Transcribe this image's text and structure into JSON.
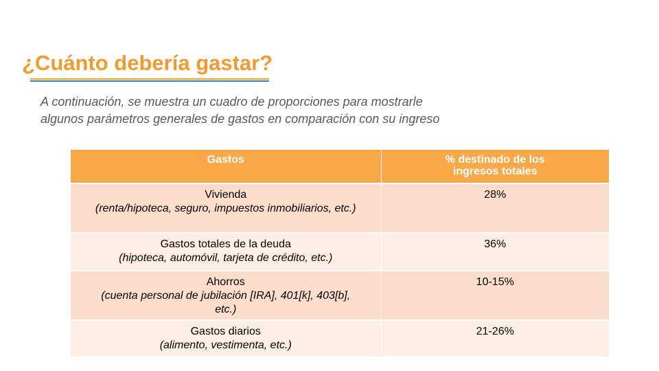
{
  "slide": {
    "title": "¿Cuánto debería gastar?",
    "subtitle_lines": [
      "A continuación, se muestra un cuadro de proporciones para mostrarle",
      "algunos parámetros generales de gastos en comparación con su ingreso"
    ],
    "colors": {
      "title": "#f29a2e",
      "header_fill": "#f8a848",
      "row_odd_fill": "#fcdccb",
      "row_even_fill": "#feeee6",
      "underline_orange": "#e8a33d",
      "underline_teal": "#2e8a9a"
    }
  },
  "table": {
    "headers": [
      "Gastos",
      "% destinado de los ingresos totales"
    ],
    "rows": [
      {
        "name": "Vivienda",
        "detail": "(renta/hipoteca, seguro, impuestos inmobiliarios, etc.)",
        "percent": "28%"
      },
      {
        "name": "Gastos totales de la deuda",
        "detail": "(hipoteca, automóvil, tarjeta de crédito, etc.)",
        "percent": "36%"
      },
      {
        "name": "Ahorros",
        "detail": "(cuenta personal de jubilación [IRA], 401[k], 403[b], etc.)",
        "percent": "10-15%"
      },
      {
        "name": "Gastos diarios",
        "detail": "(alimento, vestimenta, etc.)",
        "percent": "21-26%"
      }
    ]
  }
}
